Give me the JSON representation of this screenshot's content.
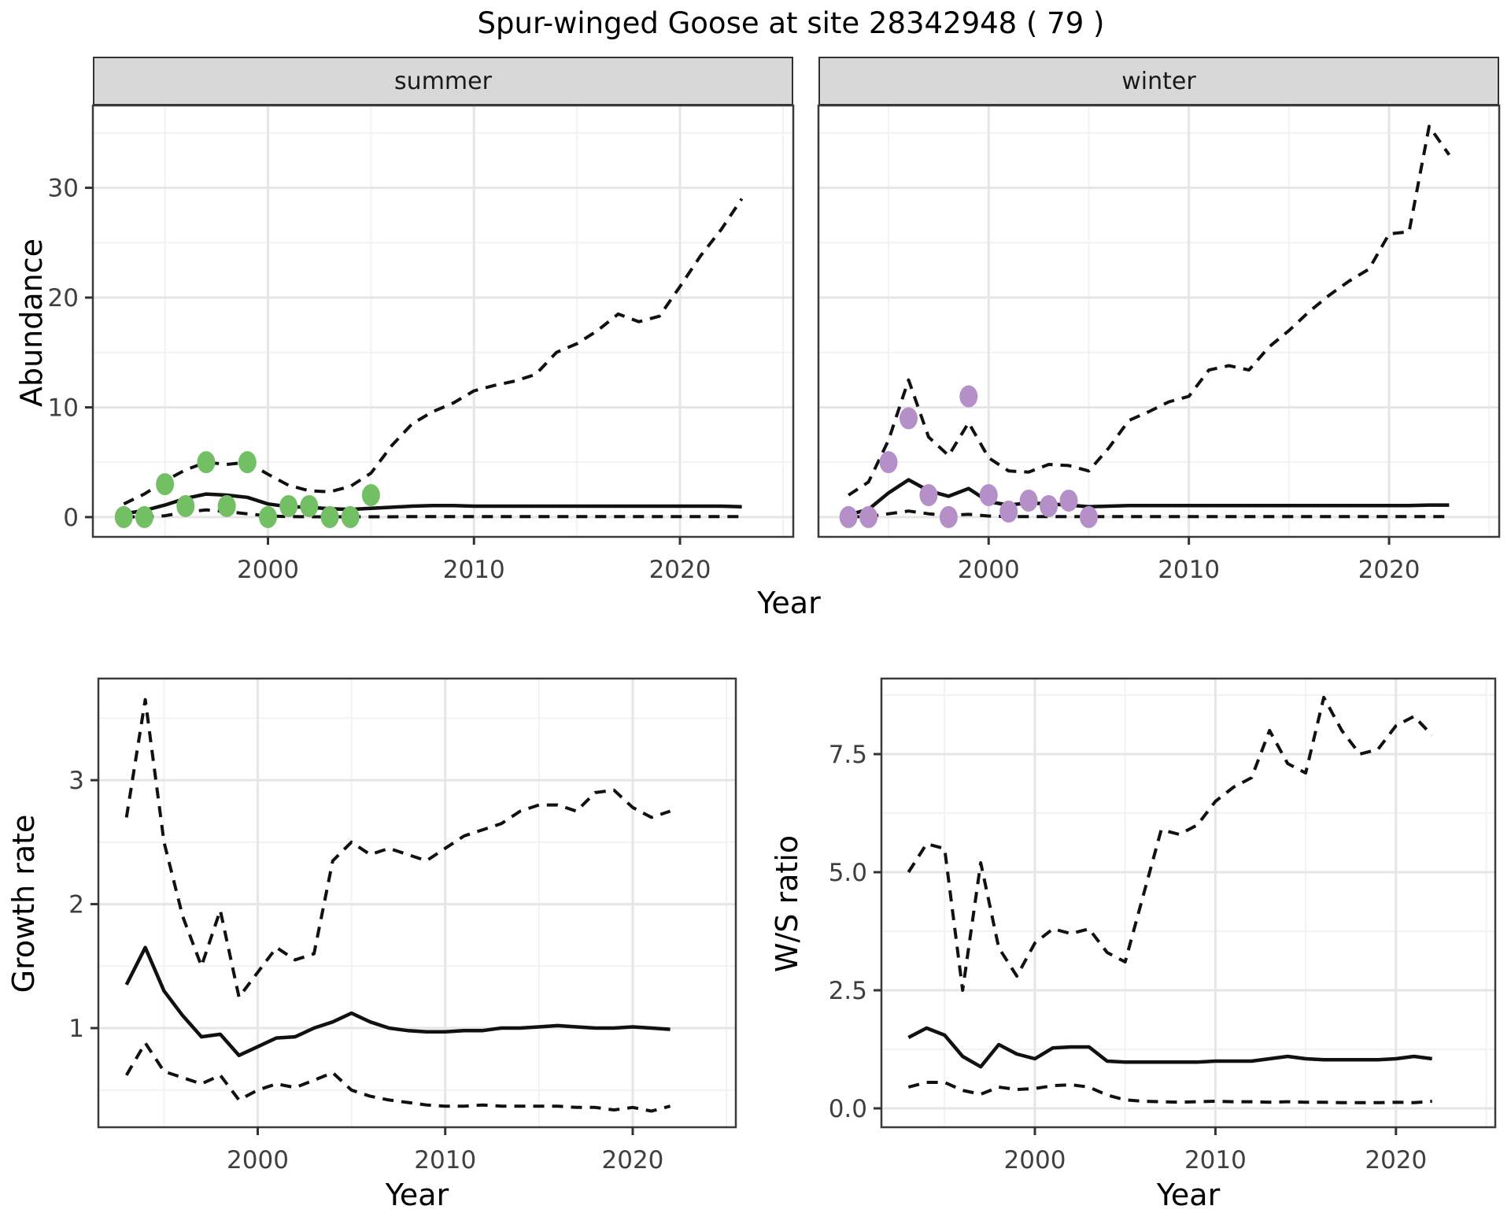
{
  "title": "Spur-winged Goose at site 28342948 ( 79 )",
  "top_row": {
    "ylabel": "Abundance",
    "xlabel": "Year",
    "facets": [
      "summer",
      "winter"
    ]
  },
  "bottom_row": {
    "left": {
      "ylabel": "Growth rate",
      "xlabel": "Year"
    },
    "right": {
      "ylabel": "W/S ratio",
      "xlabel": "Year"
    }
  },
  "colors": {
    "summer_point": "#73BF63",
    "winter_point": "#B48FC8",
    "line": "#111111",
    "grid_major": "#E6E6E6",
    "grid_minor": "#F2F2F2",
    "panel_border": "#3A3A3A",
    "strip_bg": "#D8D8D8",
    "tick_text": "#3F3F3F"
  },
  "chart_data": [
    {
      "type": "line",
      "title": "summer facet: abundance model fit (solid), 95% CI (dashed), observed counts (green points)",
      "xlabel": "Year",
      "ylabel": "Abundance",
      "xlim": [
        1991.5,
        2025.5
      ],
      "ylim": [
        -1.8,
        37.5
      ],
      "xticks": [
        2000,
        2010,
        2020
      ],
      "xtick_labels": [
        "2000",
        "2010",
        "2020"
      ],
      "yticks": [
        0,
        10,
        20,
        30
      ],
      "ytick_labels": [
        "0",
        "10",
        "20",
        "30"
      ],
      "x_minor": [
        1995,
        2005,
        2015,
        2025
      ],
      "y_minor": [
        5,
        15,
        25,
        35
      ],
      "grid": true,
      "legend": "none",
      "series": [
        {
          "name": "upper-ci",
          "style": "dashed",
          "x": [
            1993,
            1994,
            1995,
            1996,
            1997,
            1998,
            1999,
            2000,
            2001,
            2002,
            2003,
            2004,
            2005,
            2006,
            2007,
            2008,
            2009,
            2010,
            2011,
            2012,
            2013,
            2014,
            2015,
            2016,
            2017,
            2018,
            2019,
            2020,
            2021,
            2022,
            2023
          ],
          "y": [
            1.2,
            2.1,
            3.3,
            4.3,
            5.0,
            4.8,
            5.0,
            3.9,
            2.9,
            2.4,
            2.3,
            2.8,
            4.0,
            6.5,
            8.5,
            9.6,
            10.4,
            11.5,
            12.0,
            12.4,
            13.0,
            15.0,
            15.8,
            17.0,
            18.5,
            17.8,
            18.3,
            21.0,
            23.8,
            26.2,
            29.0
          ]
        },
        {
          "name": "estimate",
          "style": "solid",
          "x": [
            1993,
            1994,
            1995,
            1996,
            1997,
            1998,
            1999,
            2000,
            2001,
            2002,
            2003,
            2004,
            2005,
            2006,
            2007,
            2008,
            2009,
            2010,
            2011,
            2012,
            2013,
            2014,
            2015,
            2016,
            2017,
            2018,
            2019,
            2020,
            2021,
            2022,
            2023
          ],
          "y": [
            0.3,
            0.6,
            1.1,
            1.7,
            2.1,
            2.0,
            1.8,
            1.2,
            0.95,
            0.9,
            0.75,
            0.7,
            0.8,
            0.9,
            1.0,
            1.05,
            1.05,
            1.0,
            1.0,
            1.0,
            1.0,
            1.0,
            1.0,
            1.0,
            1.0,
            1.0,
            1.0,
            1.0,
            1.0,
            1.0,
            0.95
          ]
        },
        {
          "name": "lower-ci",
          "style": "dashed",
          "x": [
            1993,
            1994,
            1995,
            1996,
            1997,
            1998,
            1999,
            2000,
            2001,
            2002,
            2003,
            2004,
            2005,
            2006,
            2007,
            2008,
            2009,
            2010,
            2011,
            2012,
            2013,
            2014,
            2015,
            2016,
            2017,
            2018,
            2019,
            2020,
            2021,
            2022,
            2023
          ],
          "y": [
            0.02,
            0.02,
            0.12,
            0.45,
            0.65,
            0.5,
            0.3,
            0.1,
            0.05,
            0.03,
            0.03,
            0.03,
            0.03,
            0.03,
            0.05,
            0.05,
            0.05,
            0.05,
            0.05,
            0.05,
            0.05,
            0.05,
            0.05,
            0.05,
            0.05,
            0.05,
            0.05,
            0.05,
            0.05,
            0.05,
            0.05
          ]
        },
        {
          "name": "observed",
          "style": "points",
          "color_key": "summer_point",
          "x": [
            1993,
            1994,
            1995,
            1996,
            1997,
            1998,
            1999,
            2000,
            2001,
            2002,
            2003,
            2004,
            2005
          ],
          "y": [
            0,
            0,
            3,
            1,
            5,
            1,
            5,
            0,
            1,
            1,
            0,
            0,
            2
          ]
        }
      ]
    },
    {
      "type": "line",
      "title": "winter facet: abundance model fit (solid), 95% CI (dashed), observed counts (purple points)",
      "xlabel": "Year",
      "ylabel": "Abundance",
      "xlim": [
        1991.5,
        2025.5
      ],
      "ylim": [
        -1.8,
        37.5
      ],
      "xticks": [
        2000,
        2010,
        2020
      ],
      "xtick_labels": [
        "2000",
        "2010",
        "2020"
      ],
      "yticks": [
        0,
        10,
        20,
        30
      ],
      "ytick_labels": [
        "0",
        "10",
        "20",
        "30"
      ],
      "x_minor": [
        1995,
        2005,
        2015,
        2025
      ],
      "y_minor": [
        5,
        15,
        25,
        35
      ],
      "grid": true,
      "legend": "none",
      "series": [
        {
          "name": "upper-ci",
          "style": "dashed",
          "x": [
            1993,
            1994,
            1995,
            1996,
            1997,
            1998,
            1999,
            2000,
            2001,
            2002,
            2003,
            2004,
            2005,
            2006,
            2007,
            2008,
            2009,
            2010,
            2011,
            2012,
            2013,
            2014,
            2015,
            2016,
            2017,
            2018,
            2019,
            2020,
            2021,
            2022,
            2023
          ],
          "y": [
            2.0,
            3.2,
            7.0,
            12.5,
            7.3,
            5.6,
            8.6,
            5.4,
            4.2,
            4.1,
            4.8,
            4.7,
            4.2,
            6.3,
            8.8,
            9.6,
            10.5,
            11.0,
            13.4,
            13.8,
            13.4,
            15.5,
            17.0,
            18.7,
            20.2,
            21.5,
            22.6,
            25.8,
            26.0,
            35.6,
            33.0
          ]
        },
        {
          "name": "estimate",
          "style": "solid",
          "x": [
            1993,
            1994,
            1995,
            1996,
            1997,
            1998,
            1999,
            2000,
            2001,
            2002,
            2003,
            2004,
            2005,
            2006,
            2007,
            2008,
            2009,
            2010,
            2011,
            2012,
            2013,
            2014,
            2015,
            2016,
            2017,
            2018,
            2019,
            2020,
            2021,
            2022,
            2023
          ],
          "y": [
            0.2,
            0.7,
            2.2,
            3.4,
            2.4,
            1.9,
            2.6,
            1.4,
            1.1,
            1.3,
            1.2,
            1.1,
            0.95,
            1.0,
            1.05,
            1.05,
            1.05,
            1.05,
            1.05,
            1.05,
            1.05,
            1.05,
            1.05,
            1.05,
            1.05,
            1.05,
            1.05,
            1.05,
            1.05,
            1.1,
            1.1
          ]
        },
        {
          "name": "lower-ci",
          "style": "dashed",
          "x": [
            1993,
            1994,
            1995,
            1996,
            1997,
            1998,
            1999,
            2000,
            2001,
            2002,
            2003,
            2004,
            2005,
            2006,
            2007,
            2008,
            2009,
            2010,
            2011,
            2012,
            2013,
            2014,
            2015,
            2016,
            2017,
            2018,
            2019,
            2020,
            2021,
            2022,
            2023
          ],
          "y": [
            0.02,
            0.05,
            0.3,
            0.55,
            0.3,
            0.15,
            0.25,
            0.1,
            0.05,
            0.05,
            0.05,
            0.05,
            0.05,
            0.05,
            0.05,
            0.05,
            0.05,
            0.05,
            0.05,
            0.05,
            0.05,
            0.05,
            0.05,
            0.05,
            0.05,
            0.05,
            0.05,
            0.05,
            0.05,
            0.05,
            0.05
          ]
        },
        {
          "name": "observed",
          "style": "points",
          "color_key": "winter_point",
          "x": [
            1993,
            1994,
            1995,
            1996,
            1997,
            1998,
            1999,
            2000,
            2001,
            2002,
            2003,
            2004,
            2005
          ],
          "y": [
            0,
            0,
            5,
            9,
            2,
            0,
            11,
            2,
            0.5,
            1.5,
            1,
            1.5,
            0
          ]
        }
      ]
    },
    {
      "type": "line",
      "title": "growth rate: estimate (solid) with CI (dashed)",
      "xlabel": "Year",
      "ylabel": "Growth rate",
      "xlim": [
        1991.5,
        2025.5
      ],
      "ylim": [
        0.2,
        3.82
      ],
      "xticks": [
        2000,
        2010,
        2020
      ],
      "xtick_labels": [
        "2000",
        "2010",
        "2020"
      ],
      "yticks": [
        1,
        2,
        3
      ],
      "ytick_labels": [
        "1",
        "2",
        "3"
      ],
      "x_minor": [
        1995,
        2005,
        2015,
        2025
      ],
      "y_minor": [
        0.5,
        1.5,
        2.5,
        3.5
      ],
      "grid": true,
      "legend": "none",
      "series": [
        {
          "name": "upper-ci",
          "style": "dashed",
          "x": [
            1993,
            1994,
            1995,
            1996,
            1997,
            1998,
            1999,
            2000,
            2001,
            2002,
            2003,
            2004,
            2005,
            2006,
            2007,
            2008,
            2009,
            2010,
            2011,
            2012,
            2013,
            2014,
            2015,
            2016,
            2017,
            2018,
            2019,
            2020,
            2021,
            2022
          ],
          "y": [
            2.7,
            3.65,
            2.5,
            1.9,
            1.5,
            1.95,
            1.25,
            1.45,
            1.65,
            1.55,
            1.6,
            2.35,
            2.5,
            2.4,
            2.45,
            2.4,
            2.35,
            2.45,
            2.55,
            2.6,
            2.65,
            2.75,
            2.8,
            2.8,
            2.75,
            2.9,
            2.92,
            2.78,
            2.7,
            2.75
          ]
        },
        {
          "name": "estimate",
          "style": "solid",
          "x": [
            1993,
            1994,
            1995,
            1996,
            1997,
            1998,
            1999,
            2000,
            2001,
            2002,
            2003,
            2004,
            2005,
            2006,
            2007,
            2008,
            2009,
            2010,
            2011,
            2012,
            2013,
            2014,
            2015,
            2016,
            2017,
            2018,
            2019,
            2020,
            2021,
            2022
          ],
          "y": [
            1.35,
            1.65,
            1.3,
            1.1,
            0.93,
            0.95,
            0.78,
            0.85,
            0.92,
            0.93,
            1.0,
            1.05,
            1.12,
            1.05,
            1.0,
            0.98,
            0.97,
            0.97,
            0.98,
            0.98,
            1.0,
            1.0,
            1.01,
            1.02,
            1.01,
            1.0,
            1.0,
            1.01,
            1.0,
            0.99
          ]
        },
        {
          "name": "lower-ci",
          "style": "dashed",
          "x": [
            1993,
            1994,
            1995,
            1996,
            1997,
            1998,
            1999,
            2000,
            2001,
            2002,
            2003,
            2004,
            2005,
            2006,
            2007,
            2008,
            2009,
            2010,
            2011,
            2012,
            2013,
            2014,
            2015,
            2016,
            2017,
            2018,
            2019,
            2020,
            2021,
            2022
          ],
          "y": [
            0.62,
            0.88,
            0.65,
            0.6,
            0.55,
            0.62,
            0.42,
            0.5,
            0.55,
            0.52,
            0.58,
            0.64,
            0.5,
            0.45,
            0.42,
            0.4,
            0.38,
            0.37,
            0.37,
            0.38,
            0.37,
            0.37,
            0.37,
            0.37,
            0.36,
            0.36,
            0.34,
            0.36,
            0.33,
            0.37
          ]
        }
      ]
    },
    {
      "type": "line",
      "title": "winter/summer ratio: estimate (solid) with CI (dashed)",
      "xlabel": "Year",
      "ylabel": "W/S ratio",
      "xlim": [
        1991.5,
        2025.5
      ],
      "ylim": [
        -0.4,
        9.1
      ],
      "xticks": [
        2000,
        2010,
        2020
      ],
      "xtick_labels": [
        "2000",
        "2010",
        "2020"
      ],
      "yticks": [
        0,
        2.5,
        5,
        7.5
      ],
      "ytick_labels": [
        "0.0",
        "2.5",
        "5.0",
        "7.5"
      ],
      "x_minor": [
        1995,
        2005,
        2015,
        2025
      ],
      "y_minor": [
        1.25,
        3.75,
        6.25,
        8.75
      ],
      "grid": true,
      "legend": "none",
      "series": [
        {
          "name": "upper-ci",
          "style": "dashed",
          "x": [
            1993,
            1994,
            1995,
            1996,
            1997,
            1998,
            1999,
            2000,
            2001,
            2002,
            2003,
            2004,
            2005,
            2006,
            2007,
            2008,
            2009,
            2010,
            2011,
            2012,
            2013,
            2014,
            2015,
            2016,
            2017,
            2018,
            2019,
            2020,
            2021,
            2022
          ],
          "y": [
            5.0,
            5.6,
            5.5,
            2.5,
            5.2,
            3.4,
            2.8,
            3.5,
            3.8,
            3.7,
            3.8,
            3.3,
            3.1,
            4.5,
            5.9,
            5.8,
            6.0,
            6.5,
            6.8,
            7.0,
            8.0,
            7.3,
            7.1,
            8.7,
            8.0,
            7.5,
            7.6,
            8.1,
            8.3,
            7.9
          ]
        },
        {
          "name": "estimate",
          "style": "solid",
          "x": [
            1993,
            1994,
            1995,
            1996,
            1997,
            1998,
            1999,
            2000,
            2001,
            2002,
            2003,
            2004,
            2005,
            2006,
            2007,
            2008,
            2009,
            2010,
            2011,
            2012,
            2013,
            2014,
            2015,
            2016,
            2017,
            2018,
            2019,
            2020,
            2021,
            2022
          ],
          "y": [
            1.5,
            1.7,
            1.55,
            1.1,
            0.88,
            1.35,
            1.15,
            1.05,
            1.28,
            1.3,
            1.3,
            1.0,
            0.98,
            0.98,
            0.98,
            0.98,
            0.98,
            1.0,
            1.0,
            1.0,
            1.05,
            1.1,
            1.05,
            1.03,
            1.03,
            1.03,
            1.03,
            1.05,
            1.1,
            1.05
          ]
        },
        {
          "name": "lower-ci",
          "style": "dashed",
          "x": [
            1993,
            1994,
            1995,
            1996,
            1997,
            1998,
            1999,
            2000,
            2001,
            2002,
            2003,
            2004,
            2005,
            2006,
            2007,
            2008,
            2009,
            2010,
            2011,
            2012,
            2013,
            2014,
            2015,
            2016,
            2017,
            2018,
            2019,
            2020,
            2021,
            2022
          ],
          "y": [
            0.45,
            0.55,
            0.55,
            0.38,
            0.3,
            0.45,
            0.4,
            0.42,
            0.48,
            0.5,
            0.45,
            0.28,
            0.18,
            0.15,
            0.14,
            0.13,
            0.14,
            0.15,
            0.14,
            0.14,
            0.13,
            0.14,
            0.13,
            0.13,
            0.12,
            0.12,
            0.12,
            0.13,
            0.12,
            0.15
          ]
        }
      ]
    }
  ]
}
